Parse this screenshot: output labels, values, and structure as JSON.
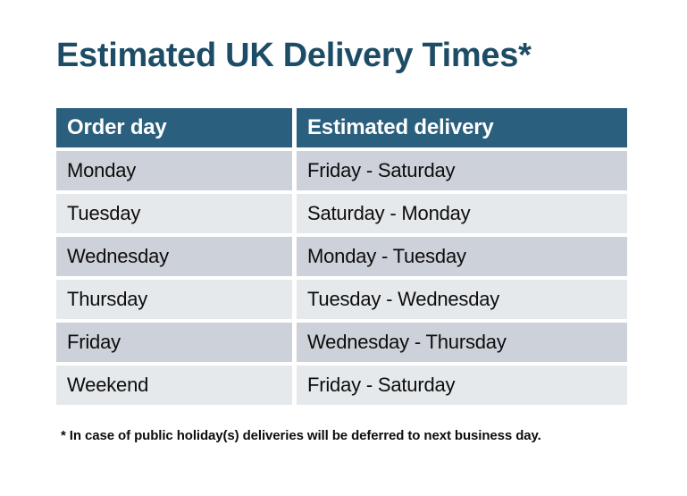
{
  "title": "Estimated UK Delivery Times*",
  "table": {
    "headers": [
      "Order day",
      "Estimated delivery"
    ],
    "rows": [
      {
        "order_day": "Monday",
        "estimated_delivery": "Friday - Saturday"
      },
      {
        "order_day": "Tuesday",
        "estimated_delivery": "Saturday - Monday"
      },
      {
        "order_day": "Wednesday",
        "estimated_delivery": "Monday - Tuesday"
      },
      {
        "order_day": "Thursday",
        "estimated_delivery": "Tuesday - Wednesday"
      },
      {
        "order_day": "Friday",
        "estimated_delivery": "Wednesday - Thursday"
      },
      {
        "order_day": "Weekend",
        "estimated_delivery": "Friday - Saturday"
      }
    ]
  },
  "footnote": "* In case of public holiday(s) deliveries will be deferred to next business day.",
  "colors": {
    "title": "#1D4D66",
    "header_bg": "#2A5F7E",
    "header_text": "#FFFFFF",
    "row_odd_bg": "#CDD1D9",
    "row_even_bg": "#E5E9EC",
    "body_text": "#0D0D0D"
  }
}
